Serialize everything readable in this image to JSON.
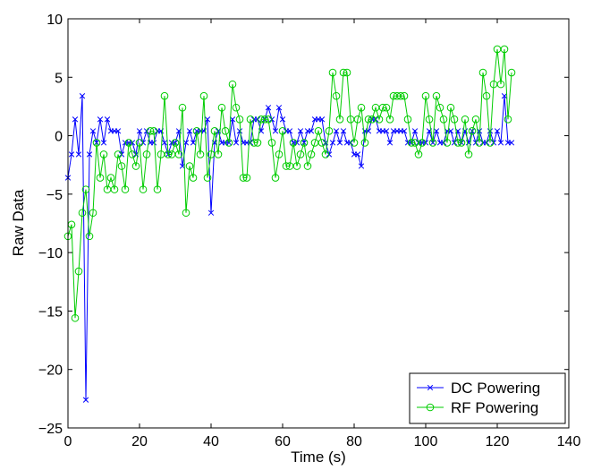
{
  "chart_data": {
    "type": "line",
    "xlabel": "Time (s)",
    "ylabel": "Raw Data",
    "xlim": [
      0,
      140
    ],
    "ylim": [
      -25,
      10
    ],
    "xticks": [
      0,
      20,
      40,
      60,
      80,
      100,
      120,
      140
    ],
    "yticks": [
      -25,
      -20,
      -15,
      -10,
      -5,
      0,
      5,
      10
    ],
    "xtick_labels": [
      "0",
      "20",
      "40",
      "60",
      "80",
      "100",
      "120",
      "140"
    ],
    "ytick_labels": [
      "−25",
      "−20",
      "−15",
      "−10",
      "−5",
      "0",
      "5",
      "10"
    ],
    "grid": false,
    "legend_position": "bottom-right",
    "series": [
      {
        "name": "DC Powering",
        "color": "#0000ff",
        "marker": "x",
        "x": [
          0,
          1,
          2,
          3,
          4,
          5,
          6,
          7,
          8,
          9,
          10,
          11,
          12,
          13,
          14,
          15,
          16,
          17,
          18,
          19,
          20,
          21,
          22,
          23,
          24,
          25,
          26,
          27,
          28,
          29,
          30,
          31,
          32,
          33,
          34,
          35,
          36,
          37,
          38,
          39,
          40,
          41,
          42,
          43,
          44,
          45,
          46,
          47,
          48,
          49,
          50,
          51,
          52,
          53,
          54,
          55,
          56,
          57,
          58,
          59,
          60,
          61,
          62,
          63,
          64,
          65,
          66,
          67,
          68,
          69,
          70,
          71,
          72,
          73,
          74,
          75,
          76,
          77,
          78,
          79,
          80,
          81,
          82,
          83,
          84,
          85,
          86,
          87,
          88,
          89,
          90,
          91,
          92,
          93,
          94,
          95,
          96,
          97,
          98,
          99,
          100,
          101,
          102,
          103,
          104,
          105,
          106,
          107,
          108,
          109,
          110,
          111,
          112,
          113,
          114,
          115,
          116,
          117,
          118,
          119,
          120,
          121,
          122,
          123,
          124
        ],
        "y": [
          -3.6,
          -1.6,
          1.4,
          -1.6,
          3.4,
          -22.6,
          -1.6,
          0.4,
          -0.6,
          1.4,
          -0.6,
          1.4,
          0.4,
          0.4,
          0.4,
          -1.6,
          -0.6,
          -0.6,
          -0.6,
          -1.6,
          0.4,
          -0.6,
          0.4,
          -0.6,
          -0.6,
          0.4,
          0.4,
          -0.6,
          -1.6,
          -0.6,
          -0.6,
          0.4,
          -2.6,
          -0.6,
          0.4,
          -0.6,
          0.4,
          0.4,
          0.4,
          1.4,
          -6.6,
          -0.6,
          0.4,
          -0.6,
          -0.6,
          -0.6,
          1.4,
          -0.6,
          0.4,
          -0.6,
          -0.6,
          -0.6,
          1.4,
          1.4,
          0.4,
          1.4,
          2.4,
          1.4,
          0.4,
          2.4,
          1.4,
          0.4,
          0.4,
          -0.6,
          -0.6,
          0.4,
          -0.6,
          0.4,
          0.4,
          1.4,
          1.4,
          1.4,
          -0.6,
          -1.6,
          -0.6,
          0.4,
          -0.6,
          0.4,
          -0.6,
          -0.6,
          -1.6,
          -1.6,
          -2.6,
          0.4,
          0.4,
          1.4,
          1.4,
          0.4,
          0.4,
          0.4,
          -0.6,
          0.4,
          0.4,
          0.4,
          0.4,
          -0.6,
          -0.6,
          0.4,
          -0.6,
          -0.6,
          -0.6,
          0.4,
          -0.6,
          0.4,
          -0.6,
          -0.6,
          0.4,
          0.4,
          -0.6,
          0.4,
          -0.6,
          0.4,
          -0.6,
          0.4,
          -0.6,
          0.4,
          -0.6,
          -0.6,
          0.4,
          -0.6,
          0.4,
          -0.6,
          3.4,
          -0.6,
          -0.6
        ]
      },
      {
        "name": "RF Powering",
        "color": "#00cc00",
        "marker": "o",
        "x": [
          0,
          1,
          2,
          3,
          4,
          5,
          6,
          7,
          8,
          9,
          10,
          11,
          12,
          13,
          14,
          15,
          16,
          17,
          18,
          19,
          20,
          21,
          22,
          23,
          24,
          25,
          26,
          27,
          28,
          29,
          30,
          31,
          32,
          33,
          34,
          35,
          36,
          37,
          38,
          39,
          40,
          41,
          42,
          43,
          44,
          45,
          46,
          47,
          48,
          49,
          50,
          51,
          52,
          53,
          54,
          55,
          56,
          57,
          58,
          59,
          60,
          61,
          62,
          63,
          64,
          65,
          66,
          67,
          68,
          69,
          70,
          71,
          72,
          73,
          74,
          75,
          76,
          77,
          78,
          79,
          80,
          81,
          82,
          83,
          84,
          85,
          86,
          87,
          88,
          89,
          90,
          91,
          92,
          93,
          94,
          95,
          96,
          97,
          98,
          99,
          100,
          101,
          102,
          103,
          104,
          105,
          106,
          107,
          108,
          109,
          110,
          111,
          112,
          113,
          114,
          115,
          116,
          117,
          118,
          119,
          120,
          121,
          122,
          123,
          124
        ],
        "y": [
          -8.6,
          -7.6,
          -15.6,
          -11.6,
          -6.6,
          -4.6,
          -8.6,
          -6.6,
          -0.6,
          -3.6,
          -1.6,
          -4.6,
          -3.6,
          -4.6,
          -1.6,
          -2.6,
          -4.6,
          -0.6,
          -1.6,
          -2.6,
          -0.6,
          -4.6,
          -1.6,
          0.4,
          0.4,
          -4.6,
          -1.6,
          3.4,
          -1.6,
          -1.6,
          -0.6,
          -1.6,
          2.4,
          -6.6,
          -2.6,
          -3.6,
          0.4,
          -1.6,
          3.4,
          -3.6,
          -1.6,
          0.4,
          -1.6,
          2.4,
          0.4,
          -0.6,
          4.4,
          2.4,
          1.4,
          -3.6,
          -3.6,
          1.4,
          -0.6,
          -0.6,
          1.4,
          1.4,
          1.4,
          -0.6,
          -3.6,
          -1.6,
          0.4,
          -2.6,
          -2.6,
          -0.6,
          -2.6,
          -1.6,
          -0.6,
          -2.6,
          -1.6,
          -0.6,
          0.4,
          -0.6,
          -1.6,
          0.4,
          5.4,
          3.4,
          1.4,
          5.4,
          5.4,
          1.4,
          -0.6,
          1.4,
          2.4,
          -0.6,
          1.4,
          1.4,
          2.4,
          1.4,
          2.4,
          2.4,
          1.4,
          3.4,
          3.4,
          3.4,
          3.4,
          1.4,
          -0.6,
          -0.6,
          -1.6,
          -0.6,
          3.4,
          1.4,
          -0.6,
          3.4,
          2.4,
          1.4,
          -0.6,
          2.4,
          1.4,
          -0.6,
          -0.6,
          1.4,
          -1.6,
          0.4,
          1.4,
          -0.6,
          5.4,
          3.4,
          -0.6,
          4.4,
          7.4,
          4.4,
          7.4,
          1.4,
          5.4
        ]
      }
    ]
  }
}
